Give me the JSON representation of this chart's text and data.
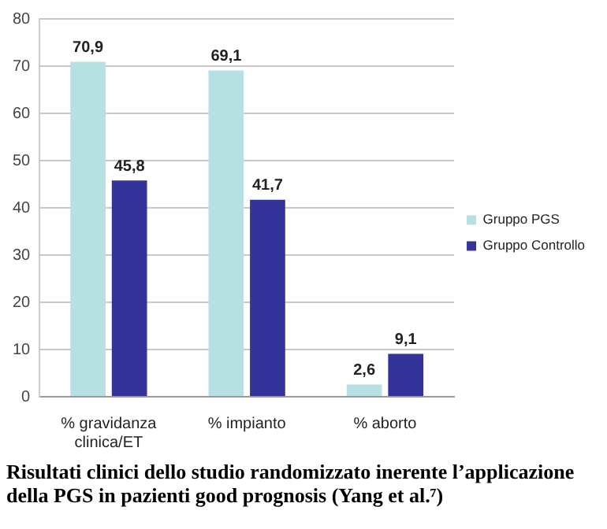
{
  "chart_data": {
    "type": "bar",
    "categories": [
      "% gravidanza clinica/ET",
      "% impianto",
      "% aborto"
    ],
    "series": [
      {
        "name": "Gruppo PGS",
        "color": "#b7e0e2",
        "values": [
          70.9,
          69.1,
          2.6
        ],
        "value_labels": [
          "70,9",
          "69,1",
          "2,6"
        ]
      },
      {
        "name": "Gruppo Controllo",
        "color": "#333399",
        "values": [
          45.8,
          41.7,
          9.1
        ],
        "value_labels": [
          "45,8",
          "41,7",
          "9,1"
        ]
      }
    ],
    "ylim": [
      0,
      80
    ],
    "yticks": [
      0,
      10,
      20,
      30,
      40,
      50,
      60,
      70,
      80
    ],
    "grid": "y",
    "legend": "right",
    "annotations": [
      "Risultati clinici dello studio randomizzato inerente l’applicazione della PGS in pazienti good prognosis (Yang et al.⁷)"
    ]
  }
}
